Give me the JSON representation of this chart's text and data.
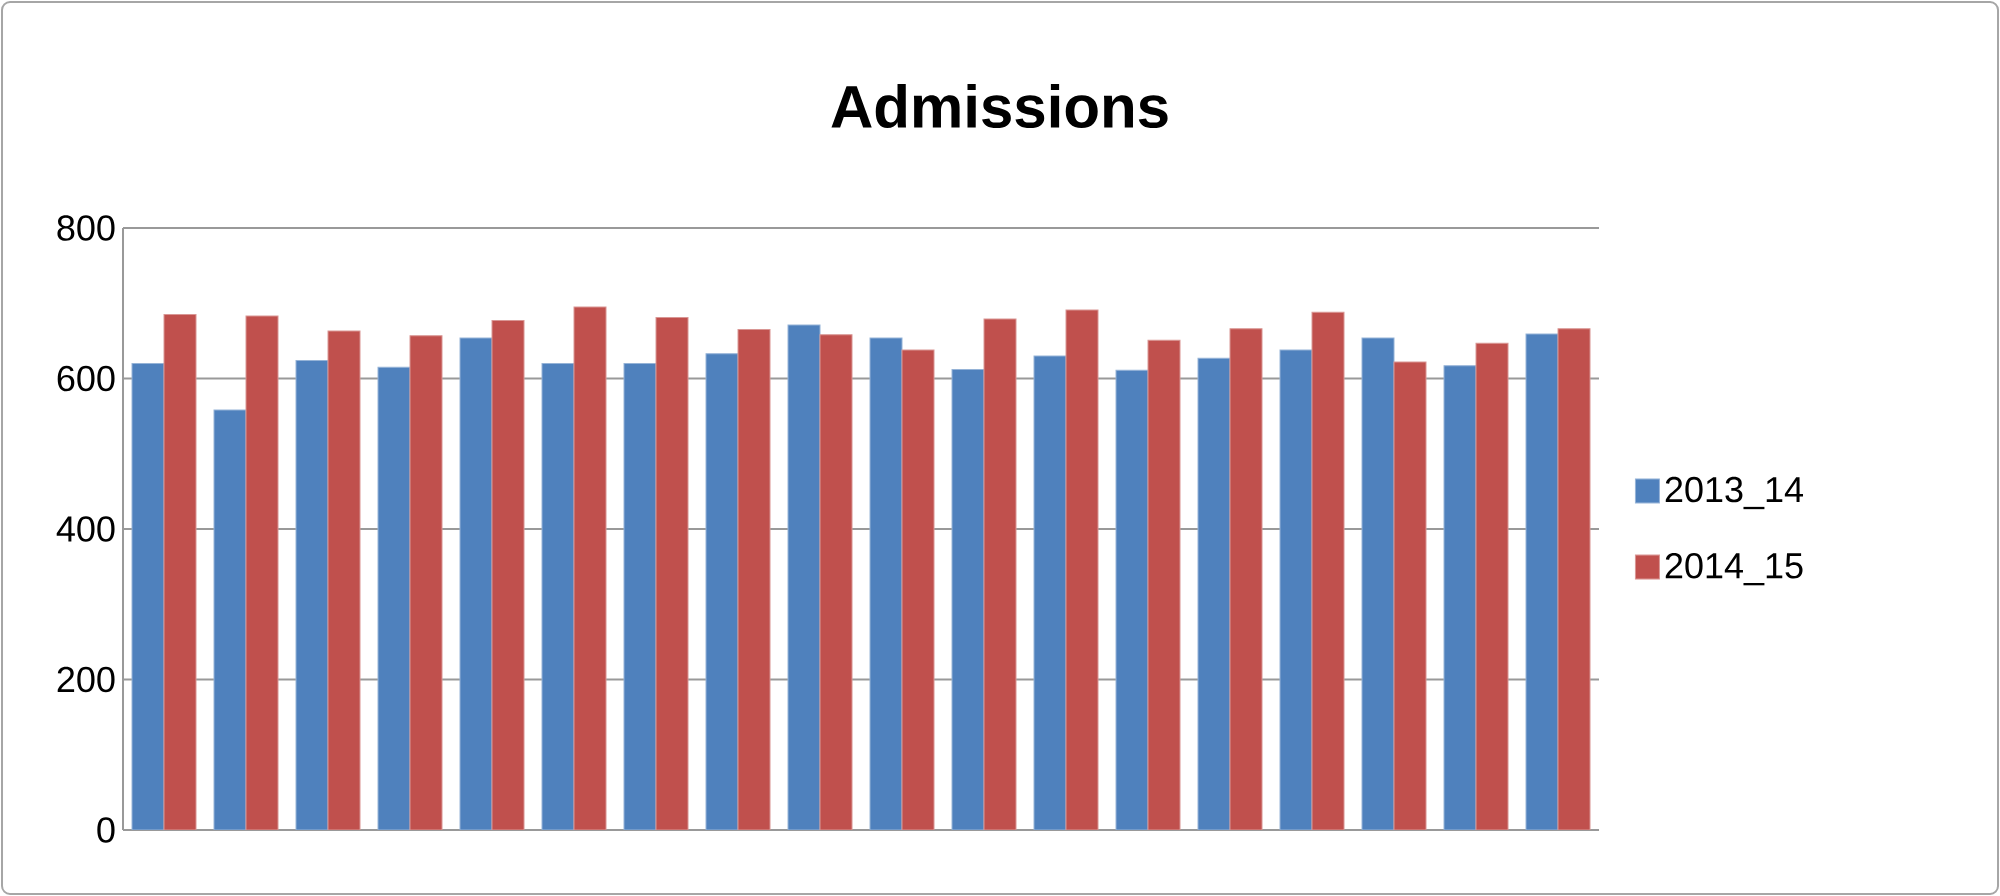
{
  "chart_data": {
    "type": "bar",
    "title": "Admissions",
    "categories": [
      null,
      null,
      null,
      null,
      null,
      null,
      null,
      null,
      null,
      null,
      null,
      null,
      null,
      null,
      null,
      null,
      null,
      null
    ],
    "series": [
      {
        "name": "2013_14",
        "color": "#4f81bd",
        "values": [
          620,
          558,
          624,
          615,
          654,
          620,
          620,
          633,
          671,
          654,
          612,
          630,
          611,
          627,
          638,
          654,
          617,
          659
        ]
      },
      {
        "name": "2014_15",
        "color": "#c0504d",
        "values": [
          685,
          683,
          663,
          657,
          677,
          695,
          681,
          665,
          658,
          638,
          679,
          691,
          651,
          666,
          688,
          622,
          647,
          666
        ]
      }
    ],
    "ylim": [
      0,
      800
    ],
    "yticks": [
      0,
      200,
      400,
      600,
      800
    ],
    "grid": "y",
    "legend": "right"
  }
}
